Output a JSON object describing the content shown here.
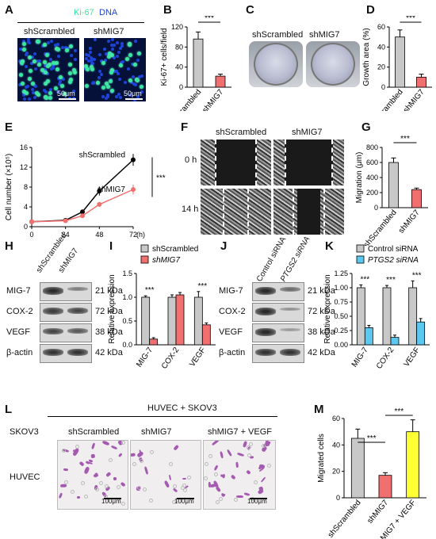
{
  "panels": {
    "A": {
      "label": "A",
      "stain1": "Ki-67",
      "stain2": "DNA",
      "conditions": [
        "shScrambled",
        "shMIG7"
      ],
      "scalebar": "50μm",
      "colors": {
        "ki67": "#38e7a0",
        "dna": "#1d44d8",
        "stain1_text": "#38e7a0",
        "stain2_text": "#1d44d8"
      }
    },
    "B": {
      "label": "B"
    },
    "C": {
      "label": "C",
      "conditions": [
        "shScrambled",
        "shMIG7"
      ]
    },
    "D": {
      "label": "D"
    },
    "E": {
      "label": "E"
    },
    "F": {
      "label": "F",
      "conditions": [
        "shScrambled",
        "shMIG7"
      ],
      "timepoints": [
        "0 h",
        "14 h"
      ]
    },
    "G": {
      "label": "G"
    },
    "H": {
      "label": "H",
      "lanes": [
        "shScrambled",
        "shMIG7"
      ],
      "proteins": [
        "MIG-7",
        "COX-2",
        "VEGF",
        "β-actin"
      ],
      "sizes": [
        "21 kDa",
        "72 kDa",
        "38 kDa",
        "42 kDa"
      ]
    },
    "I": {
      "label": "I"
    },
    "J": {
      "label": "J",
      "lanes": [
        "Control siRNA",
        "PTGS2 siRNA"
      ],
      "proteins": [
        "MIG-7",
        "COX-2",
        "VEGF",
        "β-actin"
      ],
      "sizes": [
        "21 kDa",
        "72 kDa",
        "38 kDa",
        "42 kDa"
      ]
    },
    "K": {
      "label": "K"
    },
    "L": {
      "label": "L",
      "header": "HUVEC + SKOV3",
      "row_label_top": "SKOV3",
      "row_label_side": "HUVEC",
      "conditions": [
        "shScrambled",
        "shMIG7",
        "shMIG7 + VEGF"
      ],
      "scalebar": "100μm"
    },
    "M": {
      "label": "M"
    }
  },
  "chart_data": [
    {
      "id": "B",
      "type": "bar",
      "categories": [
        "shScrambled",
        "shMIG7"
      ],
      "values": [
        96,
        22
      ],
      "errors": [
        14,
        4
      ],
      "colors": [
        "#c8c8c8",
        "#f07070"
      ],
      "ylabel": "Ki-67+ cells/field",
      "yticks": [
        0,
        40,
        80,
        120
      ],
      "ylim": [
        0,
        120
      ],
      "significance": [
        {
          "from": 0,
          "to": 1,
          "label": "***"
        }
      ]
    },
    {
      "id": "D",
      "type": "bar",
      "categories": [
        "shScrambled",
        "shMIG7"
      ],
      "values": [
        50,
        10
      ],
      "errors": [
        7,
        3
      ],
      "colors": [
        "#c8c8c8",
        "#f07070"
      ],
      "ylabel": "Growth area (%)",
      "yticks": [
        0,
        20,
        40,
        60
      ],
      "ylim": [
        0,
        60
      ],
      "significance": [
        {
          "from": 0,
          "to": 1,
          "label": "***"
        }
      ]
    },
    {
      "id": "E",
      "type": "line",
      "xlabel_unit": "(h)",
      "ylabel": "Cell number (×10⁵)",
      "x": [
        0,
        24,
        36,
        48,
        72
      ],
      "xticks": [
        0,
        24,
        48,
        72
      ],
      "yticks": [
        0,
        4,
        8,
        12,
        16
      ],
      "xlim": [
        0,
        72
      ],
      "ylim": [
        0,
        16
      ],
      "series": [
        {
          "name": "shScrambled",
          "color": "#000000",
          "values": [
            1.0,
            1.3,
            3.0,
            7.2,
            13.5
          ],
          "errors": [
            0.1,
            0.2,
            0.3,
            0.9,
            1.2
          ]
        },
        {
          "name": "shMIG7",
          "color": "#f07070",
          "values": [
            1.0,
            1.2,
            2.2,
            4.5,
            7.5
          ],
          "errors": [
            0.1,
            0.2,
            0.3,
            0.5,
            1.0
          ]
        }
      ],
      "significance": "***"
    },
    {
      "id": "G",
      "type": "bar",
      "categories": [
        "shScrambled",
        "shMIG7"
      ],
      "values": [
        600,
        240
      ],
      "errors": [
        60,
        20
      ],
      "colors": [
        "#c8c8c8",
        "#f07070"
      ],
      "ylabel": "Migration (μm)",
      "yticks": [
        0,
        200,
        400,
        600,
        800
      ],
      "ylim": [
        0,
        800
      ],
      "significance": [
        {
          "from": 0,
          "to": 1,
          "label": "***"
        }
      ]
    },
    {
      "id": "I",
      "type": "bar",
      "categories": [
        "MIG-7",
        "COX-2",
        "VEGF"
      ],
      "series": [
        {
          "name": "shScrambled",
          "color": "#c8c8c8",
          "values": [
            1.0,
            1.0,
            1.0
          ],
          "errors": [
            0.03,
            0.05,
            0.12
          ]
        },
        {
          "name": "shMIG7",
          "color": "#f07070",
          "values": [
            0.12,
            1.05,
            0.42
          ],
          "errors": [
            0.03,
            0.05,
            0.04
          ]
        }
      ],
      "ylabel": "Relative expression",
      "yticks": [
        0.0,
        0.5,
        1.0,
        1.5
      ],
      "ylim": [
        0,
        1.5
      ],
      "significance": [
        "***",
        "",
        "***"
      ]
    },
    {
      "id": "K",
      "type": "bar",
      "categories": [
        "MIG-7",
        "COX-2",
        "VEGF"
      ],
      "series": [
        {
          "name": "Control siRNA",
          "color": "#c8c8c8",
          "values": [
            1.0,
            1.0,
            1.0
          ],
          "errors": [
            0.05,
            0.04,
            0.12
          ]
        },
        {
          "name": "PTGS2 siRNA",
          "color": "#5bc8f0",
          "values": [
            0.3,
            0.13,
            0.4
          ],
          "errors": [
            0.04,
            0.04,
            0.06
          ]
        }
      ],
      "ylabel": "Relative expression",
      "yticks": [
        0.0,
        0.25,
        0.5,
        0.75,
        1.0,
        1.25
      ],
      "ylim": [
        0,
        1.25
      ],
      "significance": [
        "***",
        "***",
        "***"
      ]
    },
    {
      "id": "M",
      "type": "bar",
      "categories": [
        "shScrambled",
        "shMIG7",
        "shMIG7 + VEGF"
      ],
      "values": [
        45,
        17,
        50
      ],
      "errors": [
        7,
        2,
        9
      ],
      "colors": [
        "#c8c8c8",
        "#f07070",
        "#ffff33"
      ],
      "ylabel": "Migrated cells",
      "yticks": [
        0,
        20,
        40,
        60
      ],
      "ylim": [
        0,
        60
      ],
      "significance": [
        {
          "from": 0,
          "to": 1,
          "label": "***"
        },
        {
          "from": 1,
          "to": 2,
          "label": "***"
        }
      ]
    }
  ]
}
